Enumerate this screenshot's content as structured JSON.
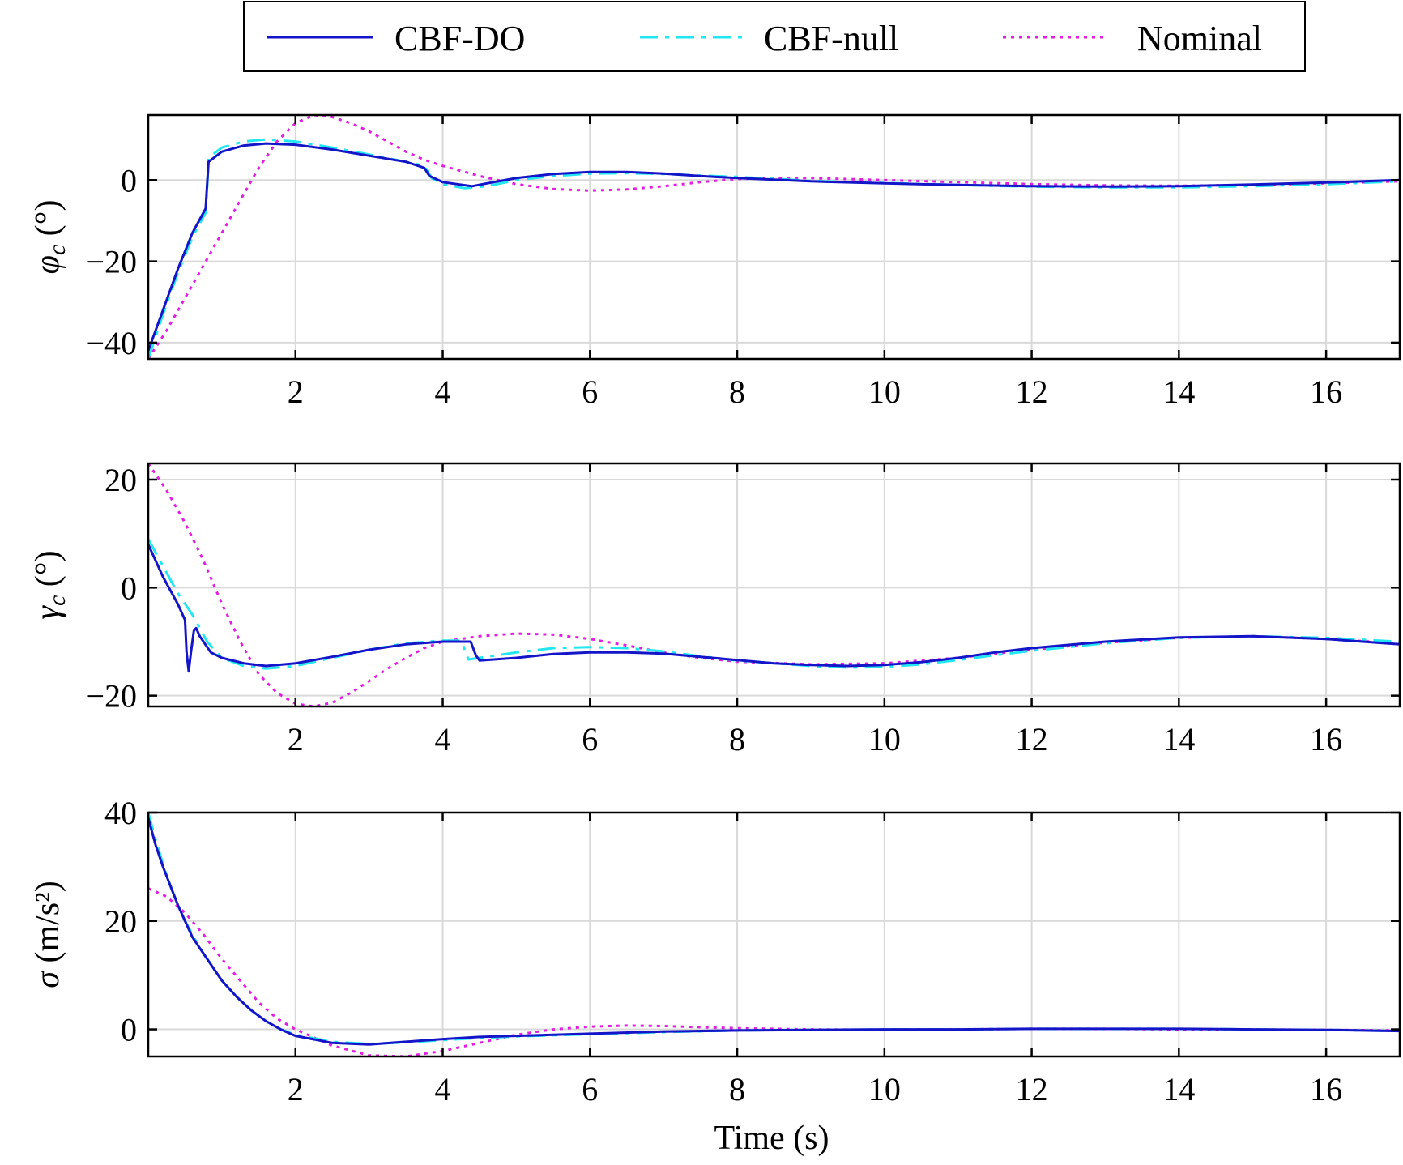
{
  "legend": {
    "items": [
      {
        "label": "CBF-DO",
        "series": "CBF-DO"
      },
      {
        "label": "CBF-null",
        "series": "CBF-null"
      },
      {
        "label": "Nominal",
        "series": "Nominal"
      }
    ]
  },
  "series_style": {
    "CBF-DO": {
      "color": "#1414c8",
      "dash": "solid"
    },
    "CBF-null": {
      "color": "#22e6f0",
      "dash": "dashed"
    },
    "Nominal": {
      "color": "#e020e0",
      "dash": "dotted"
    }
  },
  "chart_data": [
    {
      "type": "line",
      "id": "phi",
      "ylabel": {
        "symbol": "φ",
        "sub": "c",
        "unit": " (°)"
      },
      "xlabel": "",
      "xlim": [
        0,
        17
      ],
      "ylim": [
        -44,
        16
      ],
      "xticks": [
        2,
        4,
        6,
        8,
        10,
        12,
        14,
        16
      ],
      "yticks": [
        -40,
        -20,
        0
      ],
      "xtick_labels": [
        "2",
        "4",
        "6",
        "8",
        "10",
        "12",
        "14",
        "16"
      ],
      "ytick_labels": [
        "−40",
        "−20",
        "0"
      ],
      "grid": true,
      "series": [
        {
          "name": "CBF-DO",
          "x": [
            0,
            0.2,
            0.4,
            0.6,
            0.78,
            0.8,
            0.82,
            1.0,
            1.3,
            1.6,
            2.0,
            2.5,
            3.0,
            3.5,
            3.75,
            3.82,
            4.0,
            4.2,
            4.4,
            4.6,
            5.0,
            5.5,
            6.0,
            6.5,
            7.0,
            7.5,
            8.0,
            9.0,
            10.0,
            11.0,
            12.0,
            13.0,
            14.0,
            15.0,
            16.0,
            17.0
          ],
          "y": [
            -42,
            -32,
            -22,
            -13,
            -7,
            -1,
            4.5,
            7,
            8.5,
            9,
            8.7,
            7.5,
            6,
            4.5,
            3,
            1,
            -0.5,
            -1,
            -1.5,
            -0.8,
            0.5,
            1.5,
            2,
            2,
            1.6,
            1,
            0.5,
            -0.3,
            -0.8,
            -1.2,
            -1.5,
            -1.6,
            -1.5,
            -1.1,
            -0.6,
            0
          ]
        },
        {
          "name": "CBF-null",
          "x": [
            0,
            0.2,
            0.4,
            0.6,
            0.78,
            0.8,
            0.82,
            1.0,
            1.3,
            1.6,
            2.0,
            2.5,
            3.0,
            3.5,
            3.75,
            3.85,
            4.0,
            4.3,
            4.6,
            5.0,
            5.5,
            6.0,
            6.5,
            7.0,
            7.5,
            8.0,
            9.0,
            10.0,
            11.0,
            12.0,
            13.0,
            14.0,
            15.0,
            16.0,
            17.0
          ],
          "y": [
            -44,
            -33,
            -23,
            -14,
            -8,
            -2,
            5.5,
            8,
            9.5,
            10,
            9.5,
            8,
            6.3,
            4.5,
            3.5,
            0.5,
            -1,
            -2,
            -1.5,
            0,
            1,
            1.6,
            1.7,
            1.5,
            1.1,
            0.8,
            -0.2,
            -0.7,
            -1.2,
            -1.6,
            -1.8,
            -1.8,
            -1.5,
            -1,
            -0.3
          ]
        },
        {
          "name": "Nominal",
          "x": [
            0,
            0.25,
            0.5,
            0.75,
            1.0,
            1.25,
            1.5,
            1.75,
            2.0,
            2.25,
            2.5,
            2.75,
            3.0,
            3.25,
            3.5,
            3.75,
            4.0,
            4.5,
            5.0,
            5.5,
            6.0,
            6.5,
            7.0,
            7.5,
            8.0,
            9.0,
            10.0,
            11.0,
            12.0,
            13.0,
            14.0,
            15.0,
            16.0,
            17.0
          ],
          "y": [
            -44,
            -37,
            -29,
            -21,
            -13,
            -5,
            3,
            9.5,
            14,
            16,
            15.5,
            14,
            12,
            9.5,
            7,
            5,
            3.5,
            1,
            -1,
            -2.2,
            -2.6,
            -2.3,
            -1.5,
            -0.5,
            0.3,
            0.5,
            0,
            -0.5,
            -1,
            -1.3,
            -1.4,
            -1.2,
            -0.8,
            -0.3
          ]
        }
      ]
    },
    {
      "type": "line",
      "id": "gamma",
      "ylabel": {
        "symbol": "γ",
        "sub": "c",
        "unit": " (°)"
      },
      "xlabel": "",
      "xlim": [
        0,
        17
      ],
      "ylim": [
        -22,
        23
      ],
      "xticks": [
        2,
        4,
        6,
        8,
        10,
        12,
        14,
        16
      ],
      "yticks": [
        -20,
        0,
        20
      ],
      "xtick_labels": [
        "2",
        "4",
        "6",
        "8",
        "10",
        "12",
        "14",
        "16"
      ],
      "ytick_labels": [
        "−20",
        "0",
        "20"
      ],
      "grid": true,
      "series": [
        {
          "name": "CBF-DO",
          "x": [
            0,
            0.2,
            0.4,
            0.5,
            0.52,
            0.55,
            0.58,
            0.62,
            0.65,
            0.7,
            0.85,
            1.0,
            1.3,
            1.6,
            2.0,
            2.5,
            3.0,
            3.5,
            4.0,
            4.2,
            4.38,
            4.45,
            4.5,
            5.0,
            5.5,
            6.0,
            6.5,
            7.0,
            7.5,
            8.0,
            8.5,
            9.0,
            9.5,
            10.0,
            10.5,
            11.0,
            11.5,
            12.0,
            13.0,
            14.0,
            15.0,
            16.0,
            17.0
          ],
          "y": [
            8,
            2,
            -3,
            -6,
            -12,
            -15.5,
            -12,
            -8,
            -7.5,
            -9,
            -12,
            -13,
            -14,
            -14.5,
            -14,
            -12.8,
            -11.5,
            -10.5,
            -10,
            -10,
            -10,
            -12.5,
            -13.5,
            -13,
            -12.3,
            -12,
            -12,
            -12.2,
            -12.8,
            -13.4,
            -14,
            -14.3,
            -14.5,
            -14.3,
            -13.8,
            -13,
            -12,
            -11.2,
            -10,
            -9.2,
            -9,
            -9.5,
            -10.5
          ]
        },
        {
          "name": "CBF-null",
          "x": [
            0,
            0.2,
            0.4,
            0.6,
            0.8,
            1.0,
            1.3,
            1.6,
            2.0,
            2.5,
            3.0,
            3.5,
            4.0,
            4.25,
            4.3,
            4.35,
            4.5,
            5.0,
            5.5,
            6.0,
            6.5,
            7.0,
            7.5,
            8.0,
            8.5,
            9.0,
            9.5,
            10.0,
            10.5,
            11.0,
            11.5,
            12.0,
            13.0,
            14.0,
            15.0,
            16.0,
            17.0
          ],
          "y": [
            9,
            4,
            -1,
            -5,
            -10,
            -13,
            -14.5,
            -15,
            -14.5,
            -13,
            -11.5,
            -10.3,
            -9.8,
            -9.8,
            -11.5,
            -13.3,
            -13,
            -12,
            -11.2,
            -11,
            -11.2,
            -11.8,
            -12.7,
            -13.5,
            -14,
            -14.5,
            -14.8,
            -14.7,
            -14.2,
            -13.4,
            -12.5,
            -11.7,
            -10.3,
            -9.3,
            -9,
            -9.3,
            -10
          ]
        },
        {
          "name": "Nominal",
          "x": [
            0,
            0.25,
            0.5,
            0.75,
            1.0,
            1.25,
            1.5,
            1.75,
            2.0,
            2.25,
            2.5,
            2.75,
            3.0,
            3.25,
            3.5,
            3.75,
            4.0,
            4.5,
            5.0,
            5.5,
            6.0,
            6.5,
            7.0,
            7.5,
            8.0,
            9.0,
            10.0,
            11.0,
            12.0,
            13.0,
            14.0,
            15.0,
            16.0,
            17.0
          ],
          "y": [
            23,
            18,
            12,
            5,
            -3,
            -10,
            -16,
            -19.5,
            -21.5,
            -22,
            -21.3,
            -19.5,
            -17.3,
            -15,
            -13,
            -11.2,
            -10,
            -9,
            -8.5,
            -8.7,
            -9.5,
            -10.7,
            -12,
            -13,
            -13.7,
            -14.2,
            -14,
            -13,
            -11.5,
            -10.2,
            -9.3,
            -9,
            -9.5,
            -10.3
          ]
        }
      ]
    },
    {
      "type": "line",
      "id": "sigma",
      "ylabel": {
        "symbol": "σ",
        "sub": "",
        "unit": " (m/s²)"
      },
      "xlabel": "Time (s)",
      "xlim": [
        0,
        17
      ],
      "ylim": [
        -5,
        40
      ],
      "xticks": [
        2,
        4,
        6,
        8,
        10,
        12,
        14,
        16
      ],
      "yticks": [
        0,
        20,
        40
      ],
      "xtick_labels": [
        "2",
        "4",
        "6",
        "8",
        "10",
        "12",
        "14",
        "16"
      ],
      "ytick_labels": [
        "0",
        "20",
        "40"
      ],
      "grid": true,
      "series": [
        {
          "name": "CBF-DO",
          "x": [
            0,
            0.1,
            0.2,
            0.3,
            0.4,
            0.5,
            0.6,
            0.7,
            0.8,
            0.9,
            1.0,
            1.2,
            1.4,
            1.6,
            1.8,
            2.0,
            2.5,
            3.0,
            3.5,
            4.0,
            4.5,
            5.0,
            5.5,
            6.0,
            7.0,
            8.0,
            9.0,
            10.0,
            11.0,
            12.0,
            13.0,
            14.0,
            15.0,
            16.0,
            17.0
          ],
          "y": [
            39,
            34,
            30,
            26.5,
            23,
            20,
            17,
            15,
            13,
            11,
            9,
            6,
            3.5,
            1.5,
            0,
            -1.2,
            -2.5,
            -2.8,
            -2.3,
            -1.8,
            -1.4,
            -1.2,
            -1,
            -0.8,
            -0.4,
            -0.2,
            -0.1,
            0,
            0,
            0.1,
            0.1,
            0.1,
            0,
            -0.1,
            -0.3
          ]
        },
        {
          "name": "CBF-null",
          "x": [
            0,
            0.1,
            0.2,
            0.3,
            0.4,
            0.5,
            0.6,
            0.7,
            0.8,
            0.9,
            1.0,
            1.2,
            1.4,
            1.6,
            1.8,
            2.0,
            2.5,
            3.0,
            3.5,
            4.0,
            4.5,
            5.0,
            5.5,
            6.0,
            7.0,
            8.0,
            9.0,
            10.0,
            11.0,
            12.0,
            13.0,
            14.0,
            15.0,
            16.0,
            17.0
          ],
          "y": [
            40,
            35,
            30.5,
            26.5,
            23,
            20,
            17.5,
            15,
            13,
            11,
            9,
            6,
            3.5,
            1.5,
            0,
            -1,
            -2.3,
            -2.7,
            -2.4,
            -2,
            -1.6,
            -1.3,
            -1.1,
            -0.9,
            -0.5,
            -0.2,
            -0.1,
            0,
            0,
            0.1,
            0.1,
            0.1,
            0,
            -0.1,
            -0.3
          ]
        },
        {
          "name": "Nominal",
          "x": [
            0,
            0.25,
            0.5,
            0.75,
            1.0,
            1.25,
            1.5,
            1.75,
            2.0,
            2.5,
            3.0,
            3.5,
            4.0,
            4.5,
            5.0,
            5.5,
            6.0,
            6.5,
            7.0,
            7.5,
            8.0,
            9.0,
            10.0,
            11.0,
            12.0,
            13.0,
            14.0,
            15.0,
            16.0,
            17.0
          ],
          "y": [
            26,
            24.5,
            21.5,
            17.5,
            13,
            9,
            5,
            2,
            0,
            -3,
            -4.8,
            -5,
            -4,
            -2.5,
            -1,
            0,
            0.5,
            0.7,
            0.6,
            0.4,
            0.2,
            0,
            -0.1,
            0,
            0.1,
            0.1,
            0,
            0,
            -0.1,
            -0.2
          ]
        }
      ]
    }
  ]
}
